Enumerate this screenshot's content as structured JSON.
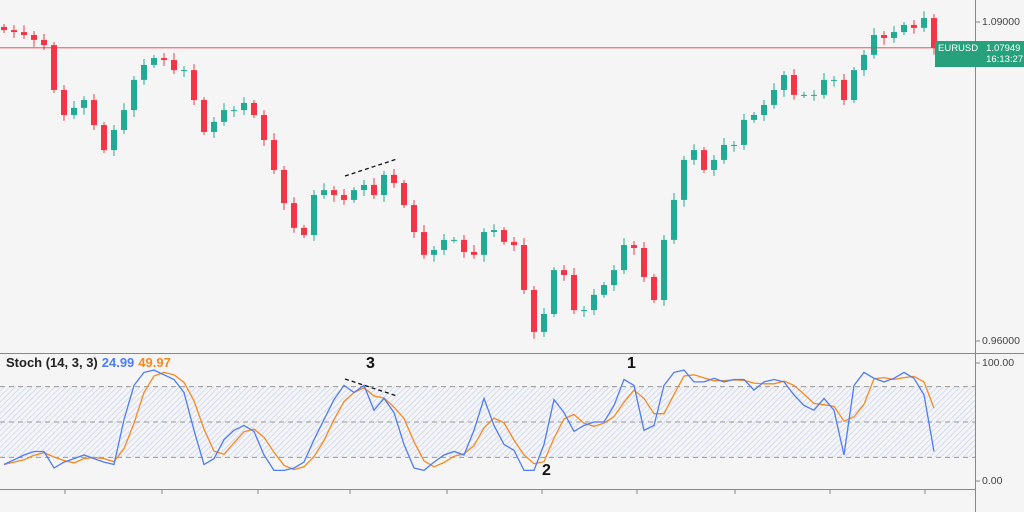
{
  "chart_data": [
    {
      "type": "candlestick",
      "symbol": "EURUSD",
      "last_price": "1.07949",
      "countdown": "16:13:27",
      "y_ticks": [
        "1.09000",
        "0.96000"
      ],
      "ylim": [
        0.955,
        1.0965
      ],
      "first_open": 1.088,
      "closes": [
        1.0867,
        1.0859,
        1.0847,
        1.0827,
        1.0806,
        1.0623,
        1.0521,
        1.055,
        1.0582,
        1.048,
        1.0378,
        1.046,
        1.0541,
        1.0664,
        1.0725,
        1.0753,
        1.0745,
        1.0704,
        1.0704,
        1.0582,
        1.0452,
        1.0493,
        1.0541,
        1.0541,
        1.057,
        1.0521,
        1.0419,
        1.0297,
        1.0162,
        1.0061,
        1.0032,
        1.0195,
        1.0215,
        1.0195,
        1.0175,
        1.0215,
        1.0236,
        1.0195,
        1.0277,
        1.0244,
        1.0154,
        1.0044,
        0.9951,
        0.9971,
        1.0012,
        1.0012,
        0.9963,
        0.9951,
        1.0044,
        1.0052,
        1.0004,
        0.9991,
        0.9808,
        0.9637,
        0.971,
        0.9889,
        0.9869,
        0.9726,
        0.9726,
        0.9788,
        0.9828,
        0.9889,
        0.9991,
        0.9979,
        0.9861,
        0.9767,
        1.0012,
        1.0175,
        1.0338,
        1.0378,
        1.0297,
        1.0338,
        1.0399,
        1.0399,
        1.0501,
        1.0521,
        1.0562,
        1.0623,
        1.0684,
        1.0603,
        1.0603,
        1.0603,
        1.0664,
        1.0664,
        1.0582,
        1.0704,
        1.0766,
        1.0847,
        1.0835,
        1.0859,
        1.0888,
        1.0876,
        1.0916,
        1.07949
      ],
      "colors": {
        "up": "#22ab94",
        "down": "#f23645",
        "price_line": "#f23645",
        "price_tag": "#26a17b"
      }
    },
    {
      "type": "line",
      "title": "Stoch (14, 3, 3)",
      "k_value": "24.99",
      "d_value": "49.97",
      "y_ticks": [
        "100.00",
        "0.00"
      ],
      "ylim": [
        0,
        100
      ],
      "bands": [
        20,
        50,
        80
      ],
      "k": [
        14,
        18,
        22,
        25,
        25,
        11,
        16,
        19,
        22,
        19,
        16,
        14,
        52,
        81,
        92,
        94,
        90,
        86,
        75,
        43,
        14,
        19,
        35,
        43,
        47,
        42,
        22,
        9,
        9,
        11,
        16,
        35,
        52,
        69,
        81,
        75,
        81,
        60,
        70,
        58,
        31,
        11,
        9,
        16,
        22,
        25,
        22,
        43,
        70,
        47,
        31,
        26,
        9,
        9,
        31,
        69,
        58,
        42,
        47,
        50,
        50,
        64,
        86,
        81,
        43,
        47,
        81,
        92,
        94,
        84,
        84,
        87,
        84,
        86,
        86,
        77,
        84,
        86,
        84,
        73,
        64,
        60,
        70,
        60,
        22,
        81,
        92,
        87,
        84,
        87,
        92,
        87,
        73,
        25
      ],
      "colors": {
        "k": "#4f7cf7",
        "d": "#f7891f",
        "band_fill": "#c9d3f5"
      }
    }
  ],
  "annotations": {
    "label_1": "1",
    "label_2": "2",
    "label_3": "3"
  }
}
